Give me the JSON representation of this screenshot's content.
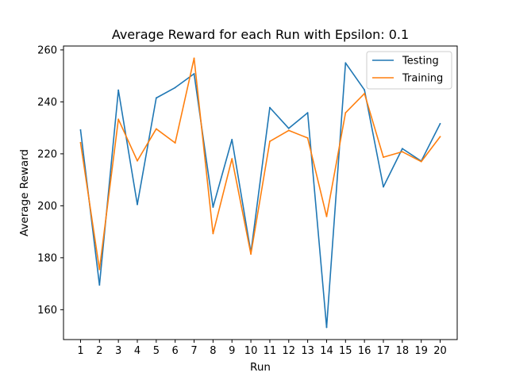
{
  "chart_data": {
    "type": "line",
    "title": "Average Reward for each Run with Epsilon: 0.1",
    "xlabel": "Run",
    "ylabel": "Average Reward",
    "x": [
      1,
      2,
      3,
      4,
      5,
      6,
      7,
      8,
      9,
      10,
      11,
      12,
      13,
      14,
      15,
      16,
      17,
      18,
      19,
      20
    ],
    "xticks": [
      "1",
      "2",
      "3",
      "4",
      "5",
      "6",
      "7",
      "8",
      "9",
      "10",
      "11",
      "12",
      "13",
      "14",
      "15",
      "16",
      "17",
      "18",
      "19",
      "20"
    ],
    "yticks": [
      160,
      180,
      200,
      220,
      240,
      260
    ],
    "xlim": [
      0.1,
      20.9
    ],
    "ylim": [
      148.5,
      261.5
    ],
    "grid": false,
    "legend_position": "upper right",
    "series": [
      {
        "name": "Testing",
        "color": "#1f77b4",
        "values": [
          229.2,
          169.5,
          244.5,
          200.5,
          241.5,
          245.5,
          250.8,
          199.5,
          225.5,
          182.0,
          237.8,
          229.8,
          235.8,
          153.2,
          255.0,
          244.6,
          207.3,
          222.0,
          217.2,
          231.6
        ]
      },
      {
        "name": "Training",
        "color": "#ff7f0e",
        "values": [
          224.3,
          175.5,
          233.3,
          217.3,
          229.6,
          224.2,
          256.8,
          189.3,
          218.1,
          181.4,
          224.8,
          229.0,
          226.1,
          195.9,
          235.8,
          243.2,
          218.7,
          220.8,
          217.0,
          226.6
        ]
      }
    ]
  }
}
